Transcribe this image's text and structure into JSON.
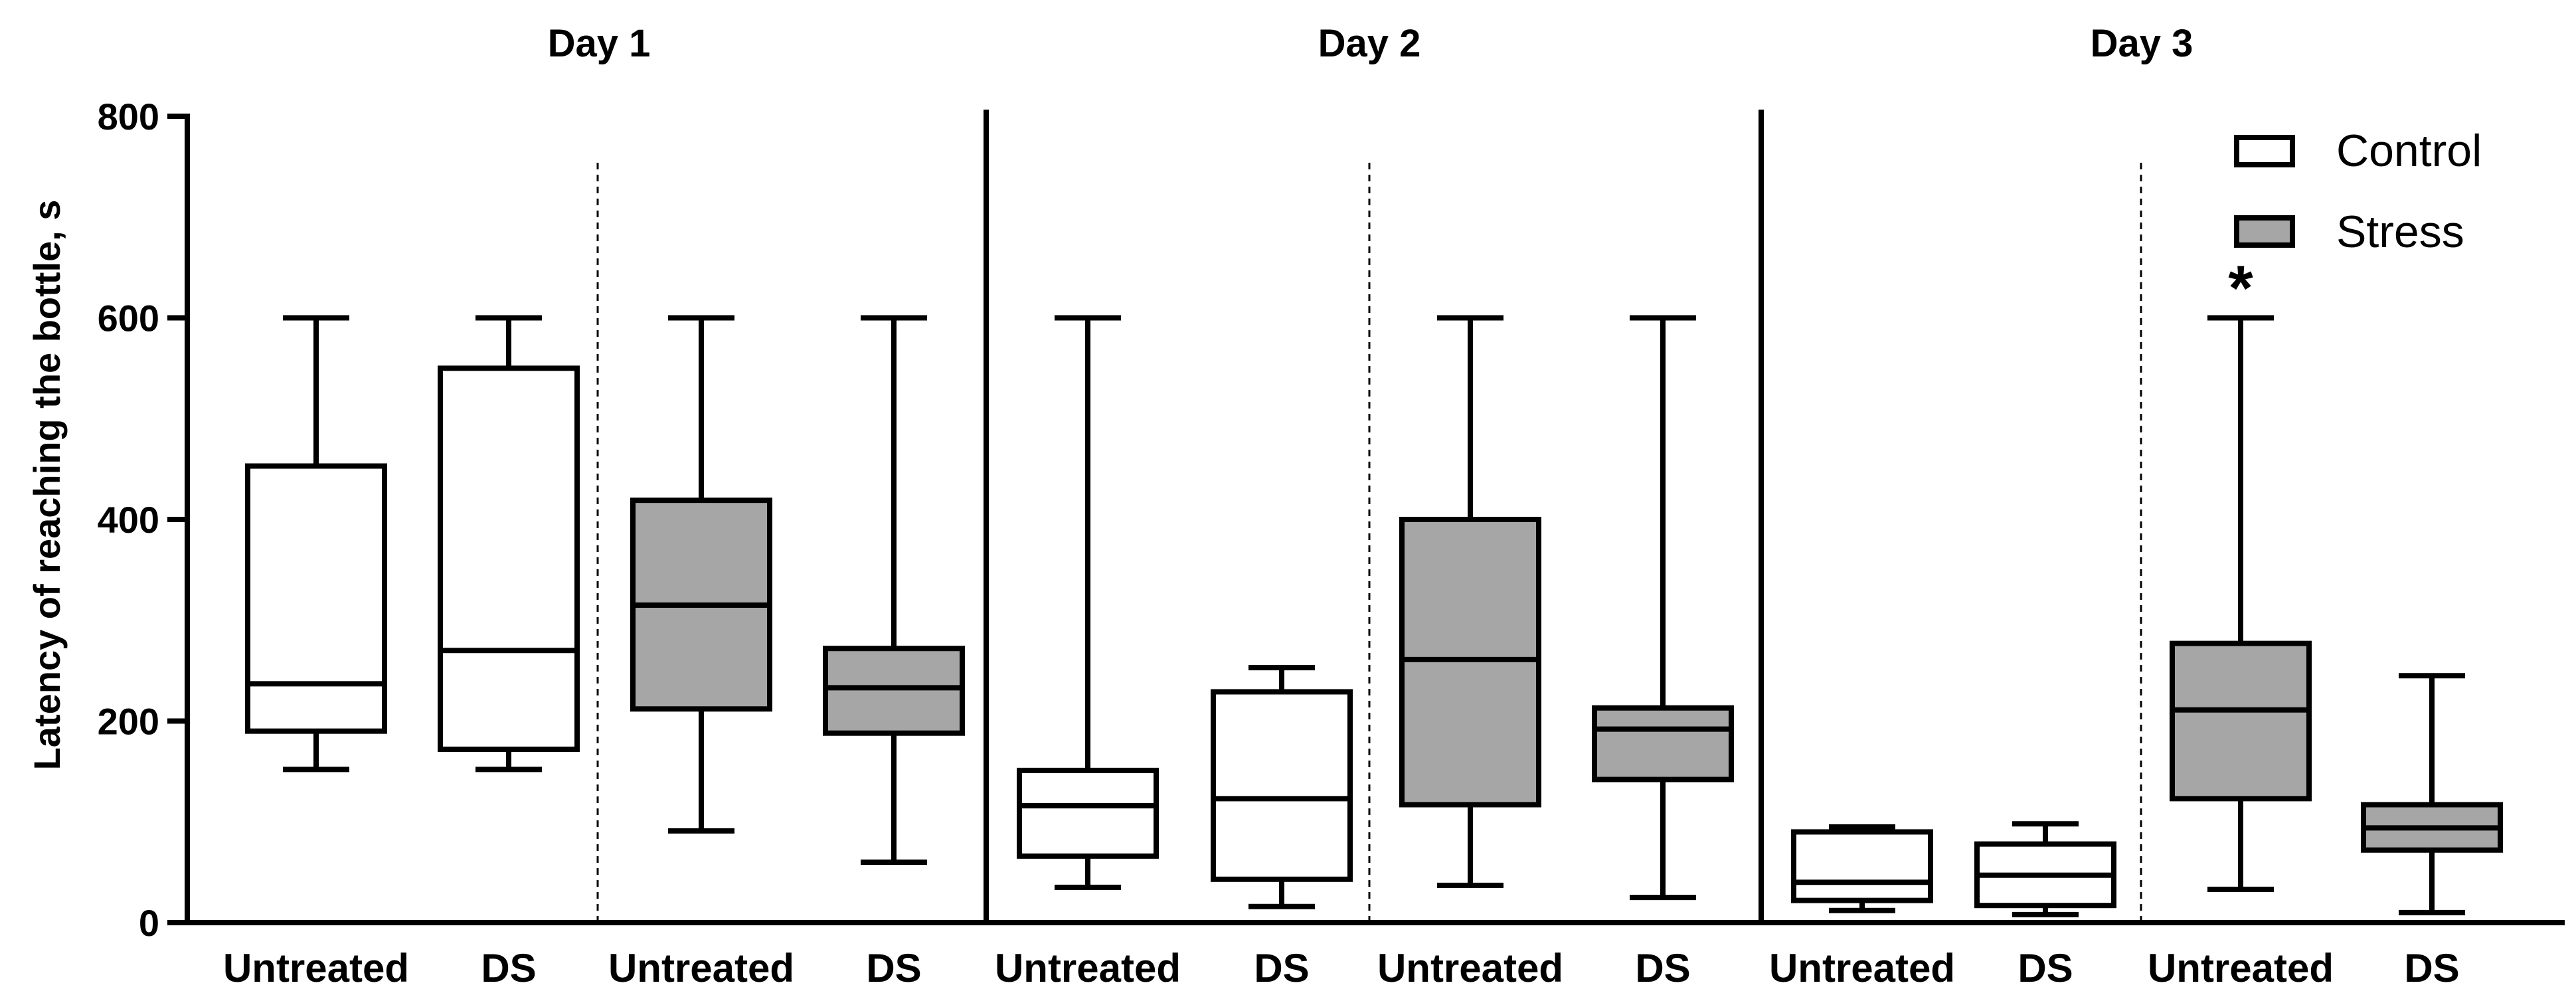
{
  "chart_data": {
    "type": "box",
    "ylabel": "Latency of reaching the bottle, s",
    "ylim": [
      0,
      800
    ],
    "yticks": [
      0,
      200,
      400,
      600,
      800
    ],
    "grid": false,
    "days": [
      "Day 1",
      "Day 2",
      "Day 3"
    ],
    "legend": {
      "placement": "top-right",
      "entries": [
        {
          "name": "Control",
          "color": "#ffffff"
        },
        {
          "name": "Stress",
          "color": "#a6a6a6"
        }
      ]
    },
    "colors": {
      "control": "#ffffff",
      "stress": "#a6a6a6",
      "stroke": "#000000"
    },
    "boxes": [
      {
        "day": "Day 1",
        "group": "Control",
        "category": "Untreated",
        "min": 152,
        "q1": 190,
        "median": 237,
        "q3": 453,
        "max": 600
      },
      {
        "day": "Day 1",
        "group": "Control",
        "category": "DS",
        "min": 152,
        "q1": 172,
        "median": 270,
        "q3": 550,
        "max": 600
      },
      {
        "day": "Day 1",
        "group": "Stress",
        "category": "Untreated",
        "min": 91,
        "q1": 212,
        "median": 315,
        "q3": 419,
        "max": 600
      },
      {
        "day": "Day 1",
        "group": "Stress",
        "category": "DS",
        "min": 60,
        "q1": 188,
        "median": 233,
        "q3": 272,
        "max": 600
      },
      {
        "day": "Day 2",
        "group": "Control",
        "category": "Untreated",
        "min": 35,
        "q1": 66,
        "median": 116,
        "q3": 151,
        "max": 600
      },
      {
        "day": "Day 2",
        "group": "Control",
        "category": "DS",
        "min": 16,
        "q1": 43,
        "median": 123,
        "q3": 229,
        "max": 253
      },
      {
        "day": "Day 2",
        "group": "Stress",
        "category": "Untreated",
        "min": 37,
        "q1": 117,
        "median": 261,
        "q3": 400,
        "max": 600
      },
      {
        "day": "Day 2",
        "group": "Stress",
        "category": "DS",
        "min": 25,
        "q1": 142,
        "median": 192,
        "q3": 213,
        "max": 600
      },
      {
        "day": "Day 3",
        "group": "Control",
        "category": "Untreated",
        "min": 12,
        "q1": 22,
        "median": 40,
        "q3": 90,
        "max": 95
      },
      {
        "day": "Day 3",
        "group": "Control",
        "category": "DS",
        "min": 8,
        "q1": 17,
        "median": 47,
        "q3": 78,
        "max": 98
      },
      {
        "day": "Day 3",
        "group": "Stress",
        "category": "Untreated",
        "min": 33,
        "q1": 123,
        "median": 211,
        "q3": 277,
        "max": 600,
        "annotation": "*"
      },
      {
        "day": "Day 3",
        "group": "Stress",
        "category": "DS",
        "min": 10,
        "q1": 72,
        "median": 94,
        "q3": 117,
        "max": 245
      }
    ]
  }
}
